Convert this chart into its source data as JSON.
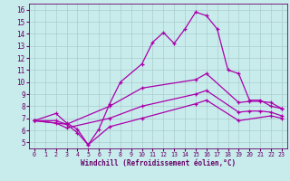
{
  "xlabel": "Windchill (Refroidissement éolien,°C)",
  "bg_color": "#c8ecec",
  "line_color": "#aa00aa",
  "grid_color": "#aacccc",
  "x_ticks": [
    0,
    1,
    2,
    3,
    4,
    5,
    6,
    7,
    8,
    9,
    10,
    11,
    12,
    13,
    14,
    15,
    16,
    17,
    18,
    19,
    20,
    21,
    22,
    23
  ],
  "y_ticks": [
    5,
    6,
    7,
    8,
    9,
    10,
    11,
    12,
    13,
    14,
    15,
    16
  ],
  "xlim": [
    -0.5,
    23.5
  ],
  "ylim": [
    4.5,
    16.5
  ],
  "series": [
    {
      "x": [
        0,
        2,
        3,
        4,
        5,
        6,
        7,
        8,
        10,
        11,
        12,
        13,
        14,
        15,
        16,
        17,
        18,
        19,
        20,
        21,
        22,
        23
      ],
      "y": [
        6.8,
        7.4,
        6.6,
        6.1,
        4.8,
        6.1,
        8.2,
        10.0,
        11.5,
        13.3,
        14.1,
        13.2,
        14.4,
        15.8,
        15.5,
        14.4,
        11.0,
        10.7,
        8.5,
        8.5,
        8.0,
        7.8
      ]
    },
    {
      "x": [
        0,
        2,
        3,
        7,
        10,
        15,
        16,
        19,
        20,
        21,
        22,
        23
      ],
      "y": [
        6.8,
        6.8,
        6.5,
        8.0,
        9.5,
        10.2,
        10.7,
        8.3,
        8.4,
        8.4,
        8.3,
        7.8
      ]
    },
    {
      "x": [
        0,
        2,
        3,
        7,
        10,
        15,
        16,
        19,
        20,
        21,
        22,
        23
      ],
      "y": [
        6.8,
        6.6,
        6.2,
        7.0,
        8.0,
        9.0,
        9.3,
        7.5,
        7.6,
        7.6,
        7.5,
        7.2
      ]
    },
    {
      "x": [
        0,
        3,
        4,
        5,
        7,
        10,
        15,
        16,
        19,
        22,
        23
      ],
      "y": [
        6.8,
        6.5,
        5.8,
        4.8,
        6.3,
        7.0,
        8.2,
        8.5,
        6.8,
        7.2,
        7.0
      ]
    }
  ]
}
